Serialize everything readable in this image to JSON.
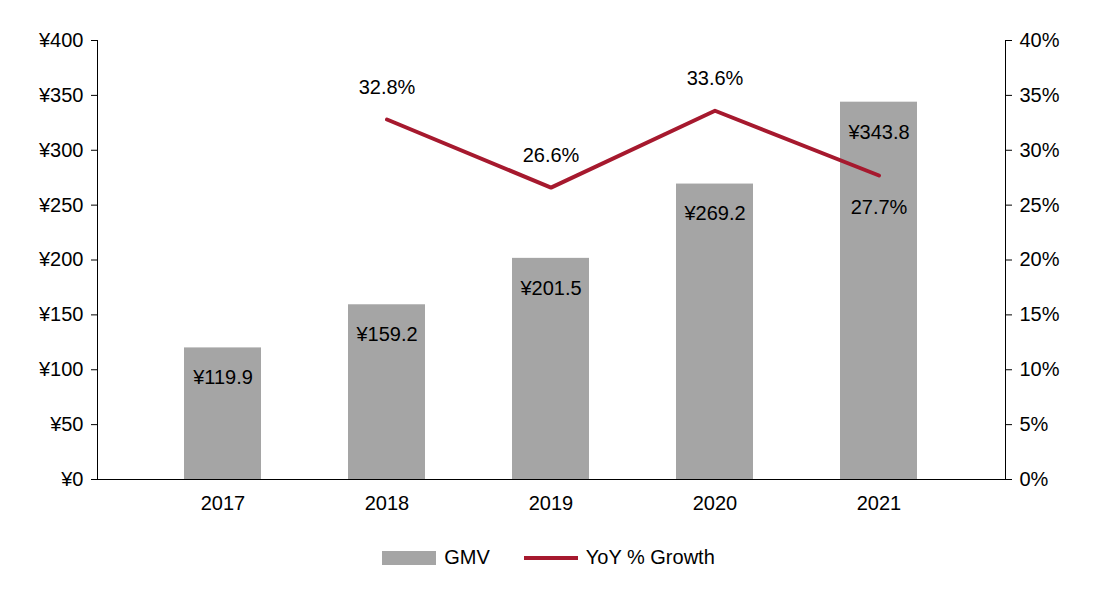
{
  "chart_data": {
    "type": "bar",
    "categories": [
      "2017",
      "2018",
      "2019",
      "2020",
      "2021"
    ],
    "series": [
      {
        "name": "GMV",
        "type": "bar",
        "color": "#a5a5a5",
        "values": [
          119.9,
          159.2,
          201.5,
          269.2,
          343.8
        ],
        "value_labels": [
          "¥119.9",
          "¥159.2",
          "¥201.5",
          "¥269.2",
          "¥343.8"
        ]
      },
      {
        "name": "YoY % Growth",
        "type": "line",
        "axis": "y2",
        "color": "#a6192e",
        "values": [
          null,
          32.8,
          26.6,
          33.6,
          27.7
        ],
        "value_labels": [
          null,
          "32.8%",
          "26.6%",
          "33.6%",
          "27.7%"
        ]
      }
    ],
    "ylim": [
      0,
      400
    ],
    "yticks": [
      {
        "value": 0,
        "label": "¥0"
      },
      {
        "value": 50,
        "label": "¥50"
      },
      {
        "value": 100,
        "label": "¥100"
      },
      {
        "value": 150,
        "label": "¥150"
      },
      {
        "value": 200,
        "label": "¥200"
      },
      {
        "value": 250,
        "label": "¥250"
      },
      {
        "value": 300,
        "label": "¥300"
      },
      {
        "value": 350,
        "label": "¥350"
      },
      {
        "value": 400,
        "label": "¥400"
      }
    ],
    "y2lim": [
      0,
      40
    ],
    "y2ticks": [
      {
        "value": 0,
        "label": "0%"
      },
      {
        "value": 5,
        "label": "5%"
      },
      {
        "value": 10,
        "label": "10%"
      },
      {
        "value": 15,
        "label": "15%"
      },
      {
        "value": 20,
        "label": "20%"
      },
      {
        "value": 25,
        "label": "25%"
      },
      {
        "value": 30,
        "label": "30%"
      },
      {
        "value": 35,
        "label": "35%"
      },
      {
        "value": 40,
        "label": "40%"
      }
    ],
    "data_labels": true,
    "legend": "bottom"
  }
}
